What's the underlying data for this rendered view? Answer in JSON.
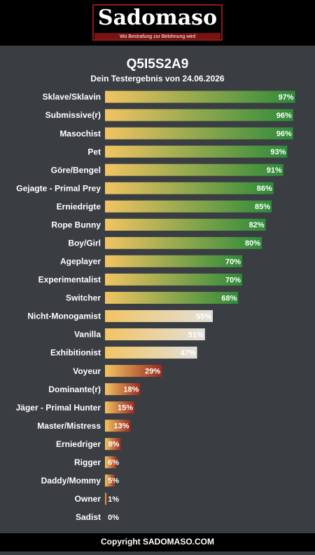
{
  "header": {
    "logo": "Sadomaso",
    "tagline": "Wo Bestrafung zur Belohnung wird"
  },
  "chart_data": {
    "type": "bar",
    "orientation": "horizontal",
    "title": "Q5I5S2A9",
    "subtitle": "Dein Testergebnis von 24.06.2026",
    "categories": [
      "Sklave/Sklavin",
      "Submissive(r)",
      "Masochist",
      "Pet",
      "Göre/Bengel",
      "Gejagte - Primal Prey",
      "Erniedrigte",
      "Rope Bunny",
      "Boy/Girl",
      "Ageplayer",
      "Experimentalist",
      "Switcher",
      "Nicht-Monogamist",
      "Vanilla",
      "Exhibitionist",
      "Voyeur",
      "Dominante(r)",
      "Jäger - Primal Hunter",
      "Master/Mistress",
      "Erniedriger",
      "Rigger",
      "Daddy/Mommy",
      "Owner",
      "Sadist"
    ],
    "values": [
      97,
      96,
      96,
      93,
      91,
      86,
      85,
      82,
      80,
      70,
      70,
      68,
      55,
      51,
      47,
      29,
      18,
      15,
      13,
      8,
      6,
      5,
      1,
      0
    ],
    "value_labels": [
      "97%",
      "96%",
      "96%",
      "93%",
      "91%",
      "86%",
      "85%",
      "82%",
      "80%",
      "70%",
      "70%",
      "68%",
      "55%",
      "51%",
      "47%",
      "29%",
      "18%",
      "15%",
      "13%",
      "8%",
      "6%",
      "5%",
      "1%",
      "0%"
    ],
    "gradient_start": "#f2c462",
    "colors": [
      "#2e8b3a",
      "#2e8b3a",
      "#2e8b3a",
      "#2e8b3a",
      "#2e8b3a",
      "#2e8b3a",
      "#2e8b3a",
      "#2e8b3a",
      "#2e8b3a",
      "#2e8b3a",
      "#2e8b3a",
      "#2e8b3a",
      "#e2e0dc",
      "#e2e0dc",
      "#e2e0dc",
      "#9a2a20",
      "#9a2a20",
      "#9a2a20",
      "#9a2a20",
      "#9a2a20",
      "#9a2a20",
      "#9a2a20",
      "#9a2a20",
      "#9a2a20"
    ],
    "xlim": [
      0,
      100
    ]
  },
  "footer": {
    "text": "Copyright SADOMASO.COM"
  }
}
